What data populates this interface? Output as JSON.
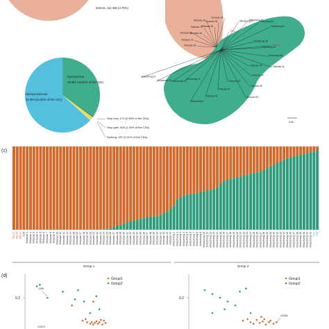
{
  "colors": {
    "orange": "#d2692a",
    "green": "#2d9b7a",
    "blue": "#55bfe0",
    "salmon": "#e9b199",
    "mint": "#3eae8c",
    "lightgreen": "#c9e9b7",
    "dark_green": "#17664e",
    "red": "#d23a3a",
    "navy": "#2f3a7a"
  },
  "top_pie": {
    "label_1": "Intronic, 112 460 (4.70%)"
  },
  "pie_b": {
    "synonymous": "Synonymous",
    "synonymous_value": "15 891 (34.60% of the CDs)",
    "nonsynonymous": "Nonsynonymous",
    "nonsynonymous_value": "28 894 (62.86% of the CDs)",
    "stop_loss": "Stop loss, 174 (0.38% of the CDs)",
    "stop_gain": "Stop gain, 605 (1.33% of the CDs)",
    "splicing": "Splicing, 187 (0.41% of the CDs)"
  },
  "tree": {
    "scale_label": "0.05",
    "orange_clade_labels": [
      "Xinluzao 24",
      "Xinluzao 31",
      "Xinluzao 50",
      "Xinluzao 46",
      "Xinluzao 17",
      "Xinluzao 25",
      "Xinluzao 33",
      "Xinluzao 38",
      "Xinluzao 36"
    ],
    "red_labels": [
      "TM-1",
      "Xinluzao 7"
    ],
    "green_clade_labels": [
      "Xinluzhong 21",
      "Xinluzhong 30",
      "Xinluzhong 40",
      "Xinluzhong 35",
      "Xinluzhong 38",
      "Xinluzhong 46",
      "Xinluzhong 56",
      "Xinluzao 42",
      "Xinluzao 45",
      "Xinluzao 49",
      "Xinluzao 52",
      "Xinluzao 53",
      "Xinluzao 54",
      "Xinluzao 61",
      "Xinluzao 62",
      "Xinluzhong 9",
      "Xinluzhong 14",
      "Xinluzhong 26",
      "Xinluzhong 28",
      "Xinluzhong 33"
    ]
  },
  "panel_labels": {
    "c": "(c)",
    "d": "(d)"
  },
  "chart_data": [
    {
      "type": "bar",
      "title": "",
      "orientation": "stacked-vertical",
      "ylim": [
        0,
        1
      ],
      "group_labels": [
        "Group 1",
        "Group 2"
      ],
      "group_sizes": [
        48,
        44
      ],
      "colored_tick_labels": {
        "orange": [
          "SPL17",
          "SPL20",
          "SPL22"
        ],
        "cyan": [
          "C02",
          "C05"
        ]
      },
      "categories": [
        "SPL17",
        "SPL20",
        "SPL22",
        "C15",
        "Xinluzao 1",
        "Xinluzao 2",
        "Xinluzao 3",
        "Xinluzao 4",
        "Xinluzao 5",
        "Xinluzao 6",
        "Xinluzao 7",
        "Xinluzao 8",
        "Xinluzao 9",
        "Xinluzao 10",
        "Xinluzao 11",
        "Xinluzao 12",
        "Xinluzao 13",
        "Xinluzao 14",
        "Xinluzao 15",
        "Xinluzao 16",
        "Xinluzao 17",
        "Xinluzao 18",
        "Xinluzao 19",
        "Xinluzao 20",
        "Xinluzao 21",
        "Xinluzao 22",
        "Xinluzao 23",
        "Xinluzao 24",
        "Xinluzao 25",
        "Xinluzao 26",
        "Xinluzao 27",
        "Xinluzao 28",
        "Xinluzao 29",
        "Xinluzao 30",
        "Xinluzao 31",
        "Xinluzao 32",
        "Xinluzao 33",
        "Xinluzao 34",
        "Xinluzao 35",
        "Xinluzao 36",
        "Xinluzao 37",
        "Xinluzao 38",
        "Xinluzao 39",
        "Xinluzao 40",
        "Xinluzao 41",
        "Xinluzao 42",
        "Xinluzao 43",
        "Xinluzao 44",
        "Xinluzhong 1",
        "Xinluzhong 2",
        "Xinluzhong 3",
        "Xinluzhong 4",
        "Xinluzhong 5",
        "Xinluzhong 6",
        "Xinluzhong 7",
        "Xinluzhong 8",
        "Xinluzhong 9",
        "Xinluzhong 10",
        "Xinluzhong 11",
        "Xinluzhong 12",
        "Xinluzhong 13",
        "Xinluzhong 14",
        "Xinluzhong 15",
        "Xinluzhong 16",
        "Xinluzhong 17",
        "Xinluzhong 18",
        "Xinluzhong 19",
        "Xinluzhong 20",
        "Xinluzhong 21",
        "Xinluzhong 22",
        "Xinluzhong 23",
        "Xinluzhong 24",
        "Xinluzhong 25",
        "Xinluzhong 26",
        "Xinluzhong 27",
        "Xinluzhong 28",
        "Xinluzhong 29",
        "Xinluzhong 30",
        "Xinluzhong 31",
        "Xinluzhong 32",
        "Xinluzhong 33",
        "Xinluzhong 34",
        "Xinluzhong 35",
        "Xinluzhong 36",
        "Xinluzhong 37",
        "Xinluzhong 38",
        "Xinluzhong 39",
        "Xinluzhong 40",
        "Xinluzhong 41",
        "Xinluzhong 42",
        "C02",
        "C05"
      ],
      "series": [
        {
          "values": [
            0.0,
            0.0,
            0.0,
            0.0,
            0.0,
            0.0,
            0.0,
            0.0,
            0.0,
            0.0,
            0.0,
            0.0,
            0.0,
            0.0,
            0.0,
            0.0,
            0.0,
            0.0,
            0.0,
            0.0,
            0.0,
            0.0,
            0.0,
            0.0,
            0.0,
            0.0,
            0.0,
            0.01,
            0.01,
            0.02,
            0.03,
            0.05,
            0.05,
            0.07,
            0.09,
            0.1,
            0.11,
            0.12,
            0.13,
            0.14,
            0.15,
            0.16,
            0.16,
            0.16,
            0.18,
            0.2,
            0.22,
            0.25,
            0.29,
            0.36,
            0.39,
            0.41,
            0.42,
            0.43,
            0.43,
            0.44,
            0.45,
            0.46,
            0.47,
            0.48,
            0.49,
            0.51,
            0.55,
            0.58,
            0.6,
            0.61,
            0.62,
            0.63,
            0.64,
            0.65,
            0.66,
            0.67,
            0.68,
            0.69,
            0.7,
            0.72,
            0.74,
            0.76,
            0.78,
            0.8,
            0.82,
            0.84,
            0.86,
            0.87,
            0.88,
            0.89,
            0.9,
            0.91,
            0.92,
            0.93,
            0.94,
            0.95
          ]
        },
        {
          "values": [
            1.0,
            1.0,
            1.0,
            1.0,
            1.0,
            1.0,
            1.0,
            1.0,
            1.0,
            1.0,
            1.0,
            1.0,
            1.0,
            1.0,
            1.0,
            1.0,
            1.0,
            1.0,
            1.0,
            1.0,
            1.0,
            1.0,
            1.0,
            1.0,
            1.0,
            1.0,
            1.0,
            0.99,
            0.99,
            0.98,
            0.97,
            0.95,
            0.95,
            0.93,
            0.91,
            0.9,
            0.89,
            0.88,
            0.87,
            0.86,
            0.85,
            0.84,
            0.84,
            0.84,
            0.82,
            0.8,
            0.78,
            0.75,
            0.71,
            0.64,
            0.61,
            0.59,
            0.58,
            0.57,
            0.57,
            0.56,
            0.55,
            0.54,
            0.53,
            0.52,
            0.51,
            0.49,
            0.45,
            0.42,
            0.4,
            0.39,
            0.38,
            0.37,
            0.36,
            0.35,
            0.34,
            0.33,
            0.32,
            0.31,
            0.3,
            0.28,
            0.26,
            0.24,
            0.22,
            0.2,
            0.18,
            0.16,
            0.14,
            0.13,
            0.12,
            0.11,
            0.1,
            0.09,
            0.08,
            0.07,
            0.06,
            0.05
          ]
        }
      ]
    },
    {
      "type": "scatter",
      "title": "",
      "ytick_label": "0.2",
      "legend": [
        "Group1",
        "Group2"
      ],
      "legend_position": "top-center",
      "annotations": [
        "100N",
        "C1670"
      ],
      "series": [
        {
          "name": "Group1",
          "points": [
            [
              -0.12,
              0.0
            ],
            [
              -0.05,
              -0.2
            ],
            [
              -0.03,
              -0.18
            ],
            [
              -0.02,
              -0.22
            ],
            [
              0.0,
              -0.24
            ],
            [
              0.01,
              -0.22
            ],
            [
              0.02,
              -0.25
            ],
            [
              0.03,
              -0.23
            ],
            [
              0.04,
              -0.21
            ],
            [
              0.05,
              -0.24
            ],
            [
              0.06,
              -0.22
            ],
            [
              0.07,
              -0.19
            ],
            [
              0.08,
              -0.25
            ],
            [
              0.09,
              -0.2
            ],
            [
              0.1,
              -0.23
            ],
            [
              0.02,
              0.05
            ]
          ]
        },
        {
          "name": "Group2",
          "points": [
            [
              -0.35,
              0.25
            ],
            [
              -0.33,
              0.27
            ],
            [
              -0.28,
              0.1
            ],
            [
              -0.18,
              0.18
            ],
            [
              -0.1,
              0.08
            ],
            [
              -0.08,
              0.2
            ],
            [
              -0.04,
              0.05
            ],
            [
              0.0,
              -0.1
            ],
            [
              0.04,
              0.12
            ],
            [
              0.06,
              -0.05
            ]
          ]
        }
      ]
    },
    {
      "type": "scatter",
      "title": "",
      "ytick_label": "0.2",
      "legend": [
        "Group1",
        "Group2"
      ],
      "legend_position": "top-center",
      "annotations": [
        "UGDM"
      ],
      "series": [
        {
          "name": "Group1",
          "points": [
            [
              0.0,
              -0.2
            ],
            [
              0.03,
              -0.18
            ],
            [
              0.05,
              -0.22
            ],
            [
              0.07,
              -0.24
            ],
            [
              0.09,
              -0.19
            ],
            [
              0.11,
              -0.23
            ],
            [
              0.13,
              -0.21
            ],
            [
              0.15,
              -0.25
            ],
            [
              0.17,
              -0.22
            ],
            [
              0.18,
              -0.2
            ],
            [
              0.2,
              -0.24
            ],
            [
              0.22,
              -0.22
            ],
            [
              0.12,
              -0.15
            ],
            [
              0.14,
              -0.18
            ]
          ]
        },
        {
          "name": "Group2",
          "points": [
            [
              -0.25,
              0.2
            ],
            [
              -0.2,
              0.15
            ],
            [
              -0.15,
              0.1
            ],
            [
              -0.1,
              0.05
            ],
            [
              -0.05,
              0.0
            ],
            [
              -0.12,
              -0.05
            ],
            [
              -0.2,
              -0.1
            ],
            [
              0.02,
              0.22
            ],
            [
              -0.02,
              0.18
            ],
            [
              0.05,
              -0.1
            ]
          ]
        }
      ]
    }
  ]
}
